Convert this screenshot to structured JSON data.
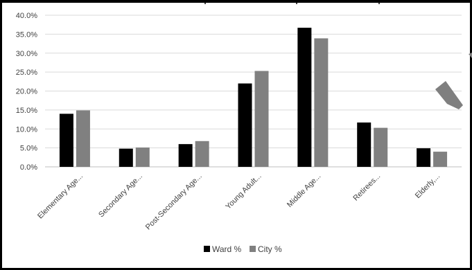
{
  "chart_data": {
    "type": "bar",
    "title": "",
    "xlabel": "",
    "ylabel": "",
    "categories": [
      "Elementary Age...",
      "Secondary Age...",
      "Post-Secondary Age...",
      "Young Adult...",
      "Middle Age...",
      "Retirees...",
      "Elderly,..."
    ],
    "series": [
      {
        "name": "Ward %",
        "color": "#000000",
        "values": [
          14.0,
          4.8,
          6.0,
          22.0,
          36.7,
          11.7,
          4.9
        ]
      },
      {
        "name": "City %",
        "color": "#808080",
        "values": [
          14.9,
          5.1,
          6.8,
          25.3,
          33.9,
          10.3,
          4.0
        ]
      }
    ],
    "ylim": [
      0,
      40
    ],
    "yticks": [
      "0.0%",
      "5.0%",
      "10.0%",
      "15.0%",
      "20.0%",
      "25.0%",
      "30.0%",
      "35.0%",
      "40.0%"
    ],
    "grid": true,
    "legend_position": "bottom"
  }
}
